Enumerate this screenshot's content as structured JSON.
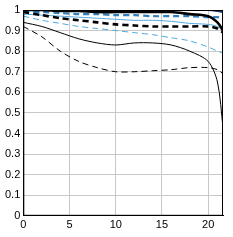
{
  "chart_data": {
    "type": "line",
    "x": [
      0,
      2,
      4,
      6,
      8,
      10,
      12,
      14,
      16,
      18,
      20,
      21,
      21.6
    ],
    "series": [
      {
        "color": "#000000",
        "line_style": "solid",
        "values": [
          1,
          1,
          0.995,
          0.995,
          0.99,
          0.99,
          0.99,
          0.99,
          0.99,
          0.98,
          0.97,
          0.94,
          0.9
        ]
      },
      {
        "color": "#000000",
        "line_style": "dashed",
        "values": [
          0.99,
          0.975,
          0.96,
          0.95,
          0.94,
          0.93,
          0.925,
          0.92,
          0.92,
          0.92,
          0.92,
          0.91,
          0.89
        ]
      },
      {
        "color": "#000000",
        "line_style": "solid",
        "values": [
          0.94,
          0.92,
          0.89,
          0.86,
          0.84,
          0.83,
          0.84,
          0.84,
          0.83,
          0.8,
          0.75,
          0.65,
          0.43
        ]
      },
      {
        "color": "#000000",
        "line_style": "dashed",
        "values": [
          0.92,
          0.87,
          0.8,
          0.75,
          0.72,
          0.7,
          0.7,
          0.705,
          0.71,
          0.72,
          0.72,
          0.71,
          0.69
        ]
      },
      {
        "color": "#1a3a7a",
        "line_style": "solid",
        "values": [
          1,
          1,
          1,
          1,
          1,
          1,
          1,
          1,
          1,
          1,
          1,
          0.995,
          0.99
        ]
      },
      {
        "color": "#2e7fc0",
        "line_style": "dashed",
        "values": [
          0.99,
          0.99,
          0.985,
          0.98,
          0.98,
          0.975,
          0.975,
          0.97,
          0.97,
          0.97,
          0.965,
          0.965,
          0.96
        ]
      },
      {
        "color": "#4fa8e0",
        "line_style": "solid",
        "values": [
          0.98,
          0.975,
          0.97,
          0.965,
          0.96,
          0.955,
          0.95,
          0.95,
          0.945,
          0.935,
          0.93,
          0.92,
          0.9
        ]
      },
      {
        "color": "#4fa8e0",
        "line_style": "dashed",
        "values": [
          0.97,
          0.95,
          0.935,
          0.92,
          0.91,
          0.9,
          0.89,
          0.88,
          0.865,
          0.85,
          0.82,
          0.8,
          0.79
        ]
      }
    ],
    "xlim": [
      0,
      21.6
    ],
    "xticks": [
      0,
      5,
      10,
      15,
      20
    ],
    "ylim": [
      0,
      1
    ],
    "yticks": [
      0,
      0.1,
      0.2,
      0.3,
      0.4,
      0.5,
      0.6,
      0.7,
      0.8,
      0.9,
      1
    ],
    "grid": true
  }
}
